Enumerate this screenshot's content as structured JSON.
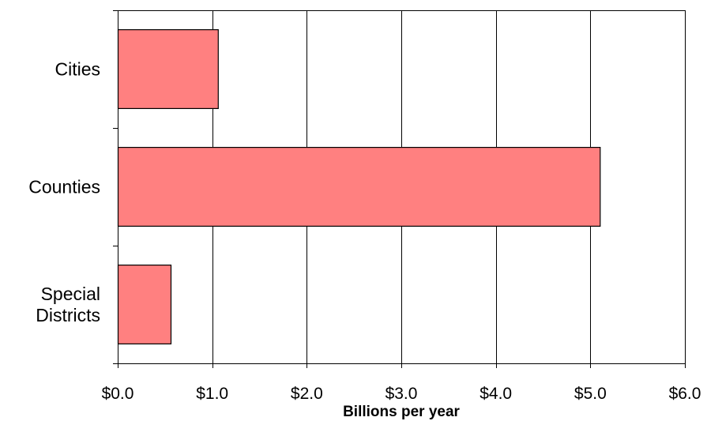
{
  "chart_data": {
    "type": "bar",
    "orientation": "horizontal",
    "categories": [
      [
        "Cities"
      ],
      [
        "Counties"
      ],
      [
        "Special",
        "Districts"
      ]
    ],
    "values": [
      1.06,
      5.1,
      0.56
    ],
    "title": "",
    "xlabel": "Billions per year",
    "ylabel": "",
    "xlim": [
      0,
      6
    ],
    "x_ticks": [
      0,
      1,
      2,
      3,
      4,
      5,
      6
    ],
    "x_tick_labels": [
      "$0.0",
      "$1.0",
      "$2.0",
      "$3.0",
      "$4.0",
      "$5.0",
      "$6.0"
    ],
    "grid": "vertical",
    "legend": "none",
    "bar_color": "#ff8080",
    "bar_edge_color": "#000000"
  }
}
